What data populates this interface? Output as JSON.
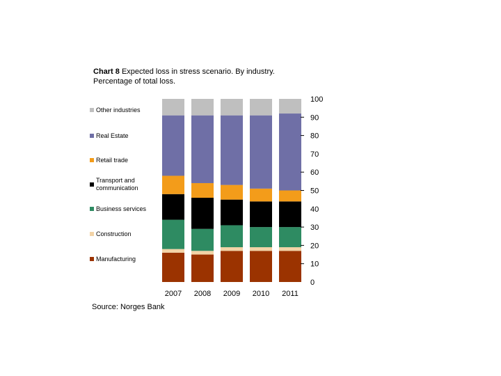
{
  "title_prefix": "Chart 8",
  "title_rest": "Expected loss in stress scenario. By industry. Percentage of total loss.",
  "source": "Source: Norges Bank",
  "chart_data": {
    "type": "bar",
    "stacked": true,
    "title": "Chart 8 Expected loss in stress scenario. By industry. Percentage of total loss.",
    "xlabel": "",
    "ylabel": "",
    "ylim": [
      0,
      100
    ],
    "yticks": [
      0,
      10,
      20,
      30,
      40,
      50,
      60,
      70,
      80,
      90,
      100
    ],
    "grid": false,
    "legend_position": "left",
    "categories": [
      "2007",
      "2008",
      "2009",
      "2010",
      "2011"
    ],
    "series": [
      {
        "name": "Manufacturing",
        "color": "#9b3300",
        "values": [
          16,
          15,
          17,
          17,
          17
        ]
      },
      {
        "name": "Construction",
        "color": "#f2d3a6",
        "values": [
          2,
          2,
          2,
          2,
          2
        ]
      },
      {
        "name": "Business services",
        "color": "#2e8b62",
        "values": [
          16,
          12,
          12,
          11,
          11
        ]
      },
      {
        "name": "Transport and communication",
        "color": "#000000",
        "values": [
          14,
          17,
          14,
          14,
          14
        ]
      },
      {
        "name": "Retail trade",
        "color": "#f39c1a",
        "values": [
          10,
          8,
          8,
          7,
          6
        ]
      },
      {
        "name": "Real Estate",
        "color": "#6f6fa6",
        "values": [
          33,
          37,
          38,
          40,
          42
        ]
      },
      {
        "name": "Other industries",
        "color": "#bfbfbf",
        "values": [
          9,
          9,
          9,
          9,
          8
        ]
      }
    ]
  }
}
